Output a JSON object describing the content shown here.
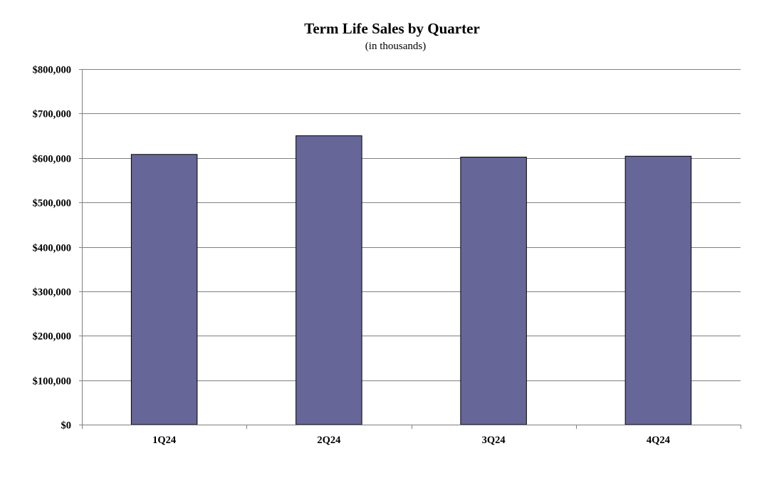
{
  "chart_data": {
    "type": "bar",
    "title": "Term Life Sales by Quarter",
    "subtitle": "(in thousands)",
    "xlabel": "",
    "ylabel": "",
    "categories": [
      "1Q24",
      "2Q24",
      "3Q24",
      "4Q24"
    ],
    "series": [
      {
        "values": [
          608000,
          650000,
          602000,
          604000
        ],
        "color": "#666699"
      }
    ],
    "ylim": [
      0,
      800000
    ],
    "yticks": [
      0,
      100000,
      200000,
      300000,
      400000,
      500000,
      600000,
      700000,
      800000
    ],
    "ytick_labels": [
      "$0",
      "$100,000",
      "$200,000",
      "$300,000",
      "$400,000",
      "$500,000",
      "$600,000",
      "$700,000",
      "$800,000"
    ],
    "grid": true,
    "legend": "none",
    "colors": {
      "bar_fill": "#666699",
      "bar_stroke": "#000000",
      "gridline": "#808080",
      "axis": "#808080"
    }
  }
}
